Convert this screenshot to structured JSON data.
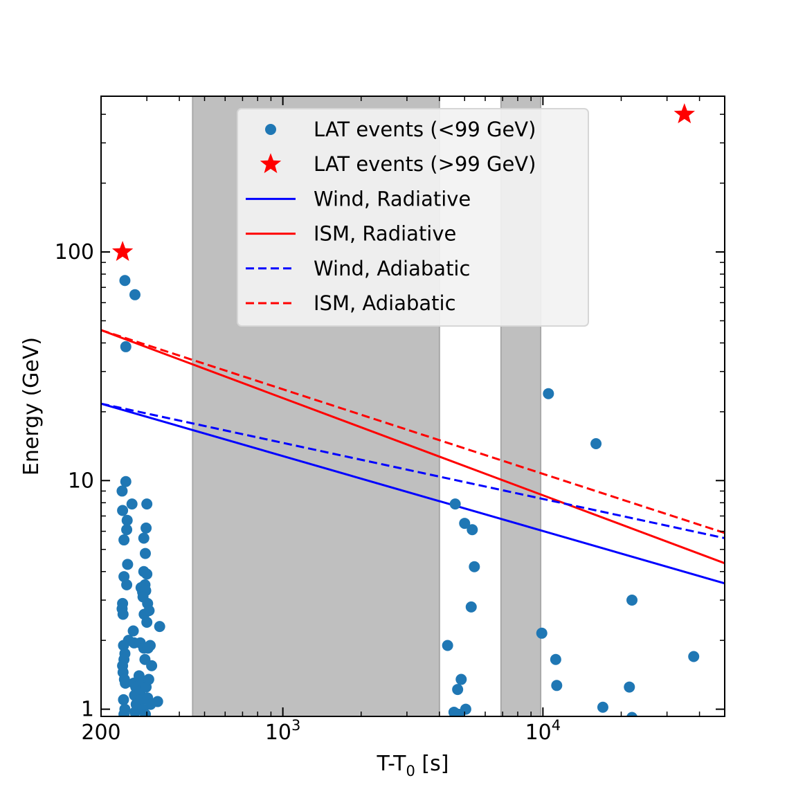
{
  "chart_data": {
    "type": "scatter",
    "xlabel": "T-T",
    "xlabel_sub": "0",
    "xlabel_unit": " [s]",
    "ylabel": "Energy (GeV)",
    "xscale": "log",
    "yscale": "log",
    "xlim": [
      200,
      50000
    ],
    "ylim": [
      0.93,
      480
    ],
    "x_tick_labels": [
      {
        "value": 200,
        "base": "200",
        "exp": ""
      },
      {
        "value": 1000,
        "base": "10",
        "exp": "3"
      },
      {
        "value": 10000,
        "base": "10",
        "exp": "4"
      }
    ],
    "y_tick_labels": [
      {
        "value": 1,
        "label": "1"
      },
      {
        "value": 10,
        "label": "10"
      },
      {
        "value": 100,
        "label": "100"
      }
    ],
    "shaded_intervals": [
      {
        "x0": 450,
        "x1": 4000,
        "color": "#bfbfbf"
      },
      {
        "x0": 6900,
        "x1": 9800,
        "color": "#bfbfbf"
      }
    ],
    "legend": {
      "position": "top-center",
      "entries": [
        {
          "label": "LAT events (<99 GeV)",
          "kind": "dot",
          "color": "#1f77b4"
        },
        {
          "label": "LAT events (>99 GeV)",
          "kind": "star",
          "color": "#ff0000"
        },
        {
          "label": "Wind, Radiative",
          "kind": "solid",
          "color": "#0000ff"
        },
        {
          "label": "ISM, Radiative",
          "kind": "solid",
          "color": "#ff0000"
        },
        {
          "label": "Wind, Adiabatic",
          "kind": "dashed",
          "color": "#0000ff"
        },
        {
          "label": "ISM, Adiabatic",
          "kind": "dashed",
          "color": "#ff0000"
        }
      ]
    },
    "series": [
      {
        "name": "Wind, Radiative",
        "style": "solid",
        "color": "#0000ff",
        "points": [
          [
            200,
            21.7
          ],
          [
            50000,
            3.55
          ]
        ]
      },
      {
        "name": "ISM, Radiative",
        "style": "solid",
        "color": "#ff0000",
        "points": [
          [
            200,
            45.5
          ],
          [
            50000,
            4.35
          ]
        ]
      },
      {
        "name": "Wind, Adiabatic",
        "style": "dashed",
        "color": "#0000ff",
        "points": [
          [
            200,
            21.7
          ],
          [
            50000,
            5.6
          ]
        ]
      },
      {
        "name": "ISM, Adiabatic",
        "style": "dashed",
        "color": "#ff0000",
        "points": [
          [
            200,
            45.5
          ],
          [
            50000,
            5.9
          ]
        ]
      },
      {
        "name": "LAT events (>99 GeV)",
        "style": "star",
        "color": "#ff0000",
        "points": [
          [
            242,
            100
          ],
          [
            35000,
            400
          ]
        ]
      },
      {
        "name": "LAT events (<99 GeV)",
        "style": "dot",
        "color": "#1f77b4",
        "points": [
          [
            247,
            75
          ],
          [
            270,
            65
          ],
          [
            249,
            38.5
          ],
          [
            249,
            9.9
          ],
          [
            241,
            9
          ],
          [
            242,
            7.4
          ],
          [
            252,
            6.7
          ],
          [
            251,
            6.1
          ],
          [
            245,
            5.5
          ],
          [
            253,
            4.3
          ],
          [
            245,
            3.8
          ],
          [
            251,
            3.5
          ],
          [
            242,
            2.9
          ],
          [
            241,
            2.75
          ],
          [
            243,
            2.6
          ],
          [
            255,
            2.0
          ],
          [
            244,
            1.9
          ],
          [
            247,
            1.75
          ],
          [
            245,
            1.65
          ],
          [
            242,
            1.55
          ],
          [
            243,
            1.45
          ],
          [
            246,
            1.35
          ],
          [
            248,
            1.3
          ],
          [
            244,
            1.1
          ],
          [
            247,
            1.0
          ],
          [
            245,
            0.95
          ],
          [
            263,
            7.9
          ],
          [
            266,
            2.2
          ],
          [
            268,
            1.95
          ],
          [
            267,
            1.3
          ],
          [
            272,
            1.25
          ],
          [
            269,
            1.15
          ],
          [
            273,
            1.05
          ],
          [
            270,
            0.97
          ],
          [
            300,
            7.9
          ],
          [
            298,
            6.2
          ],
          [
            292,
            5.6
          ],
          [
            296,
            4.8
          ],
          [
            292,
            4.0
          ],
          [
            300,
            3.9
          ],
          [
            285,
            3.4
          ],
          [
            295,
            3.5
          ],
          [
            289,
            3.25
          ],
          [
            297,
            3.3
          ],
          [
            290,
            3.1
          ],
          [
            302,
            2.9
          ],
          [
            293,
            2.6
          ],
          [
            306,
            2.7
          ],
          [
            300,
            2.4
          ],
          [
            283,
            1.95
          ],
          [
            292,
            1.85
          ],
          [
            303,
            1.85
          ],
          [
            309,
            1.9
          ],
          [
            295,
            1.65
          ],
          [
            313,
            1.55
          ],
          [
            280,
            1.4
          ],
          [
            292,
            1.3
          ],
          [
            305,
            1.35
          ],
          [
            283,
            1.2
          ],
          [
            298,
            1.25
          ],
          [
            286,
            1.1
          ],
          [
            302,
            1.12
          ],
          [
            290,
            1.0
          ],
          [
            296,
            0.95
          ],
          [
            310,
            1.05
          ],
          [
            336,
            2.3
          ],
          [
            330,
            1.08
          ],
          [
            4300,
            1.9
          ],
          [
            4600,
            7.9
          ],
          [
            5000,
            6.5
          ],
          [
            5350,
            6.1
          ],
          [
            5450,
            4.2
          ],
          [
            5300,
            2.8
          ],
          [
            4850,
            1.35
          ],
          [
            4700,
            1.22
          ],
          [
            4550,
            0.97
          ],
          [
            4750,
            0.95
          ],
          [
            5050,
            1.0
          ],
          [
            10500,
            24
          ],
          [
            9900,
            2.15
          ],
          [
            11200,
            1.65
          ],
          [
            11300,
            1.27
          ],
          [
            16000,
            14.5
          ],
          [
            17000,
            1.02
          ],
          [
            22000,
            3.0
          ],
          [
            21500,
            1.25
          ],
          [
            22000,
            0.92
          ],
          [
            38000,
            1.7
          ]
        ]
      }
    ]
  }
}
